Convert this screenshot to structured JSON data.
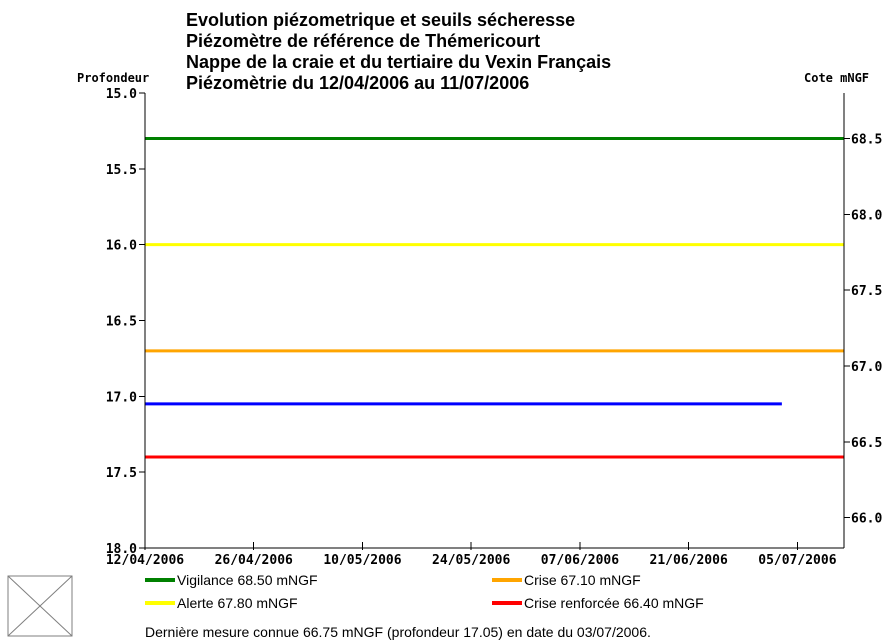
{
  "chart_data": {
    "type": "line",
    "title_lines": [
      "Evolution piézometrique et seuils sécheresse",
      "Piézomètre de référence de Thémericourt",
      "Nappe de la craie et du tertiaire du Vexin Français",
      "Piézomètrie du 12/04/2006 au 11/07/2006"
    ],
    "left_axis": {
      "label": "Profondeur",
      "ticks": [
        "15.0",
        "15.5",
        "16.0",
        "16.5",
        "17.0",
        "17.5",
        "18.0"
      ],
      "tick_values": [
        15.0,
        15.5,
        16.0,
        16.5,
        17.0,
        17.5,
        18.0
      ],
      "range": [
        15.0,
        18.0
      ],
      "inverted": true
    },
    "right_axis": {
      "label": "Cote mNGF",
      "ticks": [
        "68.5",
        "68.0",
        "67.5",
        "67.0",
        "66.5",
        "66.0"
      ],
      "tick_values": [
        68.5,
        68.0,
        67.5,
        67.0,
        66.5,
        66.0
      ]
    },
    "x_axis": {
      "ticks": [
        "12/04/2006",
        "26/04/2006",
        "10/05/2006",
        "24/05/2006",
        "07/06/2006",
        "21/06/2006",
        "05/07/2006"
      ],
      "range": [
        "2006-04-12",
        "2006-07-11"
      ]
    },
    "thresholds": [
      {
        "name": "Vigilance",
        "label": "Vigilance 68.50 mNGF",
        "cote": 68.5,
        "profondeur": 15.3,
        "color": "#008000"
      },
      {
        "name": "Alerte",
        "label": "Alerte 67.80 mNGF",
        "cote": 67.8,
        "profondeur": 16.0,
        "color": "#ffff00"
      },
      {
        "name": "Crise",
        "label": "Crise 67.10 mNGF",
        "cote": 67.1,
        "profondeur": 16.7,
        "color": "#ffa500"
      },
      {
        "name": "Crise renforcée",
        "label": "Crise renforcée 66.40 mNGF",
        "cote": 66.4,
        "profondeur": 17.4,
        "color": "#ff0000"
      }
    ],
    "series": [
      {
        "color": "#0000ff",
        "x": [
          "2006-04-12",
          "2006-07-03"
        ],
        "y": [
          17.05,
          17.05
        ]
      }
    ],
    "footnote": "Dernière mesure connue 66.75 mNGF (profondeur  17.05) en date du 03/07/2006."
  }
}
